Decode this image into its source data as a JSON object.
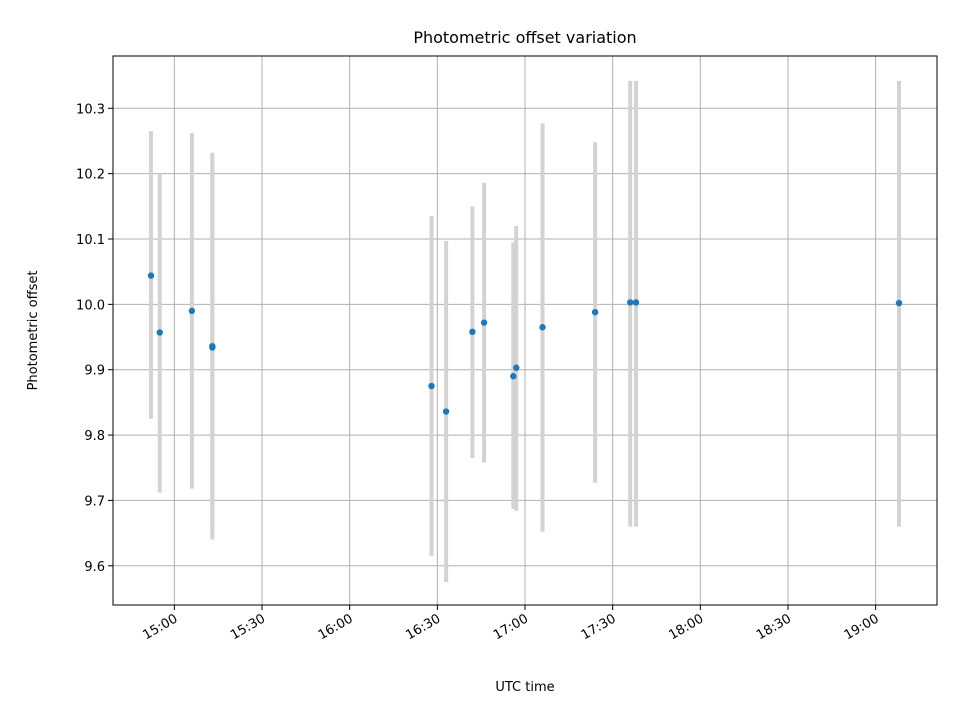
{
  "chart_data": {
    "type": "scatter",
    "title": "Photometric offset variation",
    "xlabel": "UTC time",
    "ylabel": "Photometric offset",
    "xlim": [
      "14:39",
      "19:21"
    ],
    "ylim": [
      9.54,
      10.38
    ],
    "x_ticks": [
      "15:00",
      "15:30",
      "16:00",
      "16:30",
      "17:00",
      "17:30",
      "18:00",
      "18:30",
      "19:00"
    ],
    "y_ticks": [
      9.6,
      9.7,
      9.8,
      9.9,
      10.0,
      10.1,
      10.2,
      10.3
    ],
    "grid": true,
    "colors": {
      "points": "#1f77b4",
      "errorbars": "#d3d3d3"
    },
    "points": [
      {
        "x": "14:52",
        "y": 10.044,
        "ylow": 9.825,
        "yhigh": 10.265
      },
      {
        "x": "14:55",
        "y": 9.957,
        "ylow": 9.712,
        "yhigh": 10.2
      },
      {
        "x": "15:06",
        "y": 9.99,
        "ylow": 9.718,
        "yhigh": 10.262
      },
      {
        "x": "15:13",
        "y": 9.934,
        "ylow": 9.648,
        "yhigh": 10.22
      },
      {
        "x": "15:13",
        "y": 9.936,
        "ylow": 9.64,
        "yhigh": 10.232
      },
      {
        "x": "16:28",
        "y": 9.875,
        "ylow": 9.615,
        "yhigh": 10.135
      },
      {
        "x": "16:33",
        "y": 9.836,
        "ylow": 9.575,
        "yhigh": 10.097
      },
      {
        "x": "16:42",
        "y": 9.958,
        "ylow": 9.765,
        "yhigh": 10.15
      },
      {
        "x": "16:46",
        "y": 9.972,
        "ylow": 9.758,
        "yhigh": 10.186
      },
      {
        "x": "16:56",
        "y": 9.89,
        "ylow": 9.687,
        "yhigh": 10.095
      },
      {
        "x": "16:57",
        "y": 9.903,
        "ylow": 9.684,
        "yhigh": 10.12
      },
      {
        "x": "17:06",
        "y": 9.965,
        "ylow": 9.652,
        "yhigh": 10.277
      },
      {
        "x": "17:24",
        "y": 9.988,
        "ylow": 9.727,
        "yhigh": 10.248
      },
      {
        "x": "17:36",
        "y": 10.003,
        "ylow": 9.66,
        "yhigh": 10.342
      },
      {
        "x": "17:38",
        "y": 10.003,
        "ylow": 9.66,
        "yhigh": 10.342
      },
      {
        "x": "19:08",
        "y": 10.002,
        "ylow": 9.66,
        "yhigh": 10.342
      }
    ]
  }
}
